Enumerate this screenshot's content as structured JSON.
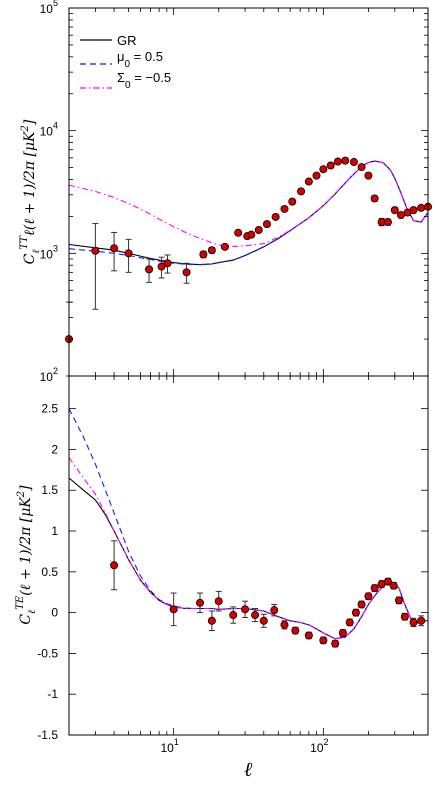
{
  "chart_data": [
    {
      "type": "line",
      "panel": "top",
      "ylabel": "C_ℓ^{TT} ℓ(ℓ+1)/2π [μK²]",
      "ylabel_parts": {
        "main": "C",
        "sup": "TT",
        "sub": "ℓ",
        "rest": "ℓ(ℓ + 1)/2π [μK",
        "unit_sup": "2",
        "close": "]"
      },
      "xscale": "log",
      "yscale": "log",
      "xlim": [
        2,
        500
      ],
      "ylim": [
        100,
        100000
      ],
      "ytick_labels": [
        {
          "base": "10",
          "exp": "2"
        },
        {
          "base": "10",
          "exp": "3"
        },
        {
          "base": "10",
          "exp": "4"
        },
        {
          "base": "10",
          "exp": "5"
        }
      ],
      "ytick_values": [
        100,
        1000,
        10000,
        100000
      ],
      "legend": {
        "placement": "top-left",
        "entries": [
          {
            "text": "GR",
            "style": "solid",
            "color": "#000000"
          },
          {
            "text": "μ",
            "sub": "0",
            "rest": " = 0.5",
            "style": "dashed",
            "color": "#1a1aff"
          },
          {
            "text": "Σ",
            "sub": "0",
            "rest": " = −0.5",
            "style": "dashdot",
            "color": "#ff00ff"
          }
        ]
      },
      "series": [
        {
          "name": "GR",
          "style": "solid",
          "color": "#000000",
          "x": [
            2,
            3,
            4,
            5,
            6,
            7,
            8,
            10,
            12,
            15,
            18,
            20,
            25,
            30,
            40,
            50,
            60,
            80,
            100,
            120,
            150,
            180,
            200,
            220,
            250,
            280,
            300,
            330,
            360,
            400,
            450,
            500
          ],
          "y": [
            1180,
            1110,
            1060,
            1000,
            950,
            910,
            880,
            840,
            820,
            810,
            820,
            840,
            880,
            960,
            1130,
            1320,
            1530,
            1950,
            2450,
            3050,
            4100,
            5100,
            5500,
            5650,
            5500,
            4800,
            4100,
            3100,
            2350,
            1850,
            1800,
            2150
          ]
        },
        {
          "name": "μ0 = 0.5",
          "style": "dashed",
          "color": "#1a1aff",
          "x": [
            2,
            3,
            4,
            5,
            6,
            7,
            8,
            10,
            12,
            15,
            18,
            20,
            25,
            30,
            40,
            50,
            60,
            80,
            100,
            120,
            150,
            180,
            200,
            220,
            250,
            280,
            300,
            330,
            360,
            400,
            450,
            500
          ],
          "y": [
            1090,
            1040,
            1000,
            960,
            920,
            890,
            865,
            830,
            815,
            808,
            818,
            838,
            878,
            958,
            1128,
            1318,
            1528,
            1948,
            2448,
            3048,
            4098,
            5098,
            5498,
            5648,
            5498,
            4798,
            4098,
            3098,
            2348,
            1848,
            1798,
            2148
          ]
        },
        {
          "name": "Σ0 = −0.5",
          "style": "dashdot",
          "color": "#ff00ff",
          "x": [
            2,
            3,
            4,
            5,
            6,
            7,
            8,
            10,
            12,
            15,
            18,
            20,
            25,
            30,
            40,
            50,
            60,
            80,
            100,
            120,
            150,
            180,
            200,
            220,
            250,
            280,
            300,
            330,
            360,
            400,
            450,
            500
          ],
          "y": [
            3600,
            3200,
            2850,
            2550,
            2300,
            2080,
            1900,
            1650,
            1480,
            1320,
            1220,
            1170,
            1140,
            1150,
            1200,
            1350,
            1540,
            1950,
            2450,
            3050,
            4100,
            5100,
            5500,
            5650,
            5500,
            4800,
            4100,
            3100,
            2350,
            1850,
            1800,
            2150
          ]
        },
        {
          "name": "data",
          "style": "points",
          "color": "#d40000",
          "x": [
            2,
            3,
            4,
            5,
            6.85,
            8.3,
            9.1,
            12.2,
            15.8,
            18,
            22,
            27,
            31,
            33,
            37,
            42,
            48,
            55,
            62,
            71,
            80,
            90,
            100,
            112,
            125,
            140,
            160,
            180,
            200,
            220,
            245,
            270,
            300,
            330,
            365,
            400,
            450,
            500
          ],
          "y": [
            200,
            1050,
            1100,
            1000,
            740,
            780,
            830,
            700,
            980,
            1060,
            1130,
            1470,
            1380,
            1420,
            1550,
            1730,
            1980,
            2300,
            2640,
            3200,
            3850,
            4300,
            4850,
            5200,
            5600,
            5700,
            5550,
            5050,
            4300,
            2800,
            1800,
            1800,
            2250,
            2050,
            2150,
            2250,
            2350,
            2400
          ],
          "yerr": [
            200,
            700,
            380,
            300,
            160,
            150,
            140,
            130,
            60,
            55,
            50,
            50,
            45,
            45,
            45,
            45,
            45,
            45,
            50,
            60,
            70,
            80,
            90,
            100,
            110,
            120,
            130,
            140,
            140,
            140,
            120,
            100,
            100,
            100,
            100,
            100,
            100,
            100
          ]
        }
      ]
    },
    {
      "type": "line",
      "panel": "bottom",
      "ylabel": "C_ℓ^{TE}(ℓ+1)/2π [μK²]",
      "ylabel_parts": {
        "main": "C",
        "sup": "TE",
        "sub": "ℓ",
        "rest": "(ℓ + 1)/2π [μK",
        "unit_sup": "2",
        "close": "]"
      },
      "xlabel": "ℓ",
      "xscale": "log",
      "xlim": [
        2,
        500
      ],
      "xtick_labels": [
        {
          "base": "10",
          "exp": "1"
        },
        {
          "base": "10",
          "exp": "2"
        }
      ],
      "xtick_values": [
        10,
        100
      ],
      "ylim": [
        -1.5,
        2.9
      ],
      "ytick_labels": [
        "-1.5",
        "-1",
        "-0.5",
        "0",
        "0.5",
        "1",
        "1.5",
        "2",
        "2.5"
      ],
      "ytick_values": [
        -1.5,
        -1,
        -0.5,
        0,
        0.5,
        1,
        1.5,
        2,
        2.5
      ],
      "series": [
        {
          "name": "GR",
          "style": "solid",
          "color": "#000000",
          "x": [
            2,
            2.5,
            3,
            3.5,
            4,
            5,
            6,
            7,
            8,
            9,
            10,
            12,
            15,
            18,
            20,
            25,
            30,
            40,
            50,
            60,
            70,
            80,
            90,
            100,
            120,
            140,
            160,
            180,
            200,
            230,
            260,
            290,
            320,
            350,
            400,
            450,
            500
          ],
          "y": [
            1.65,
            1.5,
            1.38,
            1.2,
            1.0,
            0.65,
            0.4,
            0.25,
            0.15,
            0.1,
            0.07,
            0.05,
            0.05,
            0.05,
            0.04,
            0.05,
            0.05,
            0.02,
            -0.05,
            -0.1,
            -0.12,
            -0.15,
            -0.2,
            -0.25,
            -0.32,
            -0.3,
            -0.2,
            -0.05,
            0.1,
            0.25,
            0.35,
            0.37,
            0.3,
            0.1,
            -0.15,
            -0.1,
            -0.1
          ]
        },
        {
          "name": "μ0 = 0.5",
          "style": "dashed",
          "color": "#1a1aff",
          "x": [
            2,
            2.5,
            3,
            3.5,
            4,
            5,
            6,
            7,
            8,
            9,
            10,
            12,
            15,
            18,
            20,
            25,
            30,
            40,
            50,
            60,
            70,
            80,
            90,
            100,
            120,
            140,
            160,
            180,
            200,
            230,
            260,
            290,
            320,
            350,
            400,
            450,
            500
          ],
          "y": [
            2.5,
            2.15,
            1.82,
            1.5,
            1.22,
            0.75,
            0.45,
            0.27,
            0.16,
            0.11,
            0.08,
            0.055,
            0.05,
            0.05,
            0.04,
            0.05,
            0.05,
            0.02,
            -0.05,
            -0.1,
            -0.12,
            -0.15,
            -0.2,
            -0.25,
            -0.32,
            -0.3,
            -0.2,
            -0.05,
            0.1,
            0.25,
            0.35,
            0.37,
            0.3,
            0.1,
            -0.15,
            -0.1,
            -0.1
          ]
        },
        {
          "name": "Σ0 = −0.5",
          "style": "dashdot",
          "color": "#ff00ff",
          "x": [
            2,
            2.5,
            3,
            3.5,
            4,
            5,
            6,
            7,
            8,
            9,
            10,
            12,
            15,
            18,
            20,
            25,
            30,
            40,
            50,
            60,
            70,
            80,
            90,
            100,
            120,
            140,
            160,
            180,
            200,
            230,
            260,
            290,
            320,
            350,
            400,
            450,
            500
          ],
          "y": [
            1.9,
            1.65,
            1.45,
            1.22,
            1.0,
            0.65,
            0.4,
            0.25,
            0.15,
            0.1,
            0.07,
            0.05,
            0.05,
            0.05,
            0.04,
            0.05,
            0.05,
            0.02,
            -0.05,
            -0.1,
            -0.12,
            -0.15,
            -0.2,
            -0.25,
            -0.32,
            -0.3,
            -0.2,
            -0.05,
            0.1,
            0.25,
            0.35,
            0.37,
            0.3,
            0.1,
            -0.15,
            -0.1,
            -0.1
          ]
        },
        {
          "name": "data",
          "style": "points",
          "color": "#d40000",
          "x": [
            4,
            10,
            15,
            18,
            20,
            25,
            30,
            35,
            40,
            47,
            55,
            65,
            80,
            100,
            120,
            135,
            150,
            165,
            180,
            200,
            220,
            245,
            270,
            295,
            320,
            350,
            400,
            450
          ],
          "y": [
            0.58,
            0.04,
            0.12,
            -0.1,
            0.14,
            -0.03,
            0.04,
            -0.03,
            -0.1,
            0.03,
            -0.15,
            -0.22,
            -0.28,
            -0.34,
            -0.38,
            -0.25,
            -0.12,
            0.0,
            0.1,
            0.2,
            0.3,
            0.35,
            0.38,
            0.33,
            0.15,
            -0.05,
            -0.12,
            -0.1
          ],
          "yerr": [
            0.3,
            0.2,
            0.12,
            0.12,
            0.12,
            0.1,
            0.1,
            0.08,
            0.08,
            0.07,
            0.05,
            0.04,
            0.04,
            0.04,
            0.04,
            0.04,
            0.04,
            0.04,
            0.04,
            0.04,
            0.04,
            0.04,
            0.04,
            0.04,
            0.04,
            0.04,
            0.05,
            0.06
          ]
        }
      ]
    }
  ]
}
